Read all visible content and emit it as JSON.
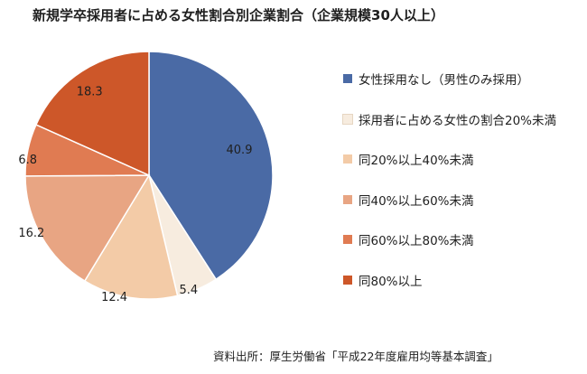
{
  "title": "新規学卒採用者に占める女性割合別企業割合（企業規模30人以上）",
  "source": "資料出所：厚生労働省「平成22年度雇用均等基本調査」",
  "chart_data": {
    "type": "pie",
    "title": "新規学卒採用者に占める女性割合別企業割合（企業規模30人以上）",
    "categories": [
      "女性採用なし（男性のみ採用）",
      "採用者に占める女性の割合20%未満",
      "同20%以上40%未満",
      "同40%以上60%未満",
      "同60%以上80%未満",
      "同80%以上"
    ],
    "values": [
      40.9,
      5.4,
      12.4,
      16.2,
      6.8,
      18.3
    ],
    "colors": [
      "#4a6aa5",
      "#f7ecdf",
      "#f3cba7",
      "#e8a583",
      "#e07b52",
      "#cd5729"
    ],
    "legend_position": "right",
    "start": "top, clockwise"
  }
}
